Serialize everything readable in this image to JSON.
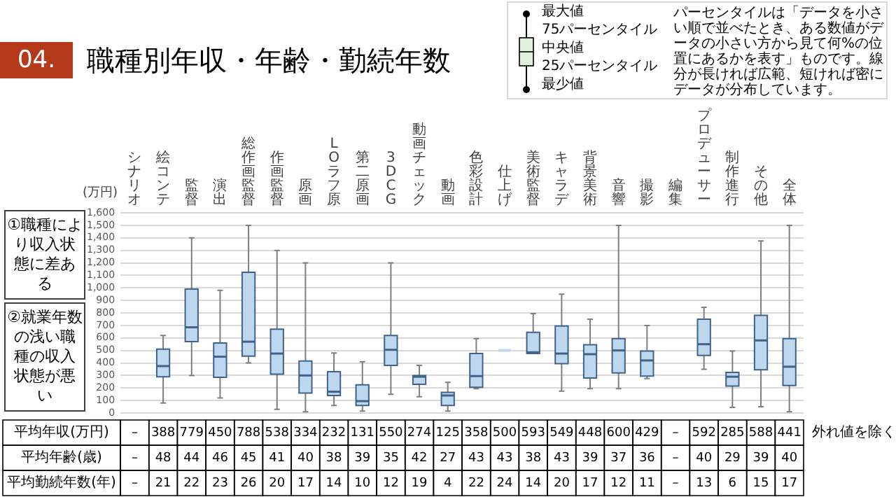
{
  "chart_data": {
    "type": "box",
    "title": "職種別年収・年齢・勤続年数",
    "ylabel": "(万円)",
    "categories": [
      "シナリオ",
      "絵コンテ",
      "監督",
      "演出",
      "総作画監督",
      "作画監督",
      "原画",
      "LOラフ原",
      "第二原画",
      "3DCG",
      "動画チェック",
      "動画",
      "色彩設計",
      "仕上げ",
      "美術監督",
      "キャラデ",
      "背景美術",
      "音響",
      "撮影",
      "編集",
      "プロデューサー",
      "制作進行",
      "その他",
      "全体"
    ],
    "series": [
      {
        "color": "#bdd7ee",
        "boxes": [
          null,
          {
            "low": 80,
            "q1": 290,
            "median": 375,
            "q3": 510,
            "high": 620
          },
          {
            "low": 300,
            "q1": 570,
            "median": 685,
            "q3": 990,
            "high": 1400
          },
          {
            "low": 120,
            "q1": 285,
            "median": 450,
            "q3": 560,
            "high": 980
          },
          {
            "low": 400,
            "q1": 455,
            "median": 570,
            "q3": 1125,
            "high": 1500
          },
          {
            "low": 30,
            "q1": 310,
            "median": 475,
            "q3": 670,
            "high": 1300
          },
          {
            "low": 10,
            "q1": 160,
            "median": 300,
            "q3": 415,
            "high": 1200
          },
          {
            "low": 60,
            "q1": 140,
            "median": 170,
            "q3": 330,
            "high": 480
          },
          {
            "low": 15,
            "q1": 60,
            "median": 95,
            "q3": 225,
            "high": 410
          },
          {
            "low": 150,
            "q1": 380,
            "median": 505,
            "q3": 620,
            "high": 1200
          },
          {
            "low": 130,
            "q1": 230,
            "median": 290,
            "q3": 300,
            "high": 380
          },
          {
            "low": 15,
            "q1": 60,
            "median": 140,
            "q3": 165,
            "high": 245
          },
          {
            "low": 195,
            "q1": 205,
            "median": 295,
            "q3": 475,
            "high": 595
          },
          {
            "low": 500,
            "q1": 500,
            "median": 500,
            "q3": 500,
            "high": 500
          },
          {
            "low": 475,
            "q1": 475,
            "median": 485,
            "q3": 645,
            "high": 795
          },
          {
            "low": 175,
            "q1": 395,
            "median": 475,
            "q3": 695,
            "high": 950
          },
          {
            "low": 195,
            "q1": 280,
            "median": 470,
            "q3": 545,
            "high": 750
          },
          {
            "low": 195,
            "q1": 320,
            "median": 500,
            "q3": 595,
            "high": 1500
          },
          {
            "low": 275,
            "q1": 295,
            "median": 420,
            "q3": 495,
            "high": 700
          },
          null,
          {
            "low": 350,
            "q1": 460,
            "median": 550,
            "q3": 750,
            "high": 845
          },
          {
            "low": 45,
            "q1": 215,
            "median": 290,
            "q3": 325,
            "high": 495
          },
          {
            "low": 50,
            "q1": 345,
            "median": 580,
            "q3": 780,
            "high": 1375
          },
          {
            "low": 10,
            "q1": 220,
            "median": 370,
            "q3": 595,
            "high": 1500
          }
        ]
      }
    ],
    "ylim": [
      0,
      1600
    ],
    "yticks": [
      0,
      {
        "value": 100,
        "label": "100"
      },
      200,
      300,
      400,
      500,
      600,
      700,
      800,
      900,
      {
        "value": 1000,
        "label": "1,000"
      },
      {
        "value": 1100,
        "label": "1,100"
      },
      {
        "value": 1200,
        "label": "1,200"
      },
      {
        "value": 1300,
        "label": "1,300"
      },
      {
        "value": 1400,
        "label": "1,400"
      },
      {
        "value": 1500,
        "label": "1,500"
      },
      {
        "value": 1600,
        "label": "1,600"
      }
    ],
    "grid": "y",
    "annotations": [
      "04.",
      "①職種により収入状態に差ある",
      "②就業年数の浅い職種の収入状態が悪い",
      "パーセンタイルは「データを小さい順で並べたとき、ある数値がデータの小さい方から見て何%の位置にあるかを表す」ものです。線分が長ければ広範、短ければ密にデータが分布しています。",
      "最大値",
      "75パーセンタイル",
      "中央値",
      "25パーセンタイル",
      "最少値",
      "外れ値を除く",
      "平均年収(万円)",
      "–",
      "388",
      "779",
      "450",
      "788",
      "538",
      "334",
      "232",
      "131",
      "550",
      "274",
      "125",
      "358",
      "500",
      "593",
      "549",
      "448",
      "600",
      "429",
      "–",
      "592",
      "285",
      "588",
      "441",
      "平均年齢(歳)",
      "–",
      "48",
      "44",
      "46",
      "45",
      "41",
      "40",
      "38",
      "39",
      "35",
      "42",
      "27",
      "43",
      "43",
      "38",
      "43",
      "39",
      "37",
      "36",
      "–",
      "40",
      "29",
      "39",
      "40",
      "平均勤続年数(年)",
      "–",
      "21",
      "22",
      "23",
      "26",
      "20",
      "17",
      "14",
      "10",
      "12",
      "19",
      "4",
      "22",
      "24",
      "14",
      "20",
      "17",
      "12",
      "11",
      "–",
      "13",
      "6",
      "15",
      "17"
    ]
  }
}
